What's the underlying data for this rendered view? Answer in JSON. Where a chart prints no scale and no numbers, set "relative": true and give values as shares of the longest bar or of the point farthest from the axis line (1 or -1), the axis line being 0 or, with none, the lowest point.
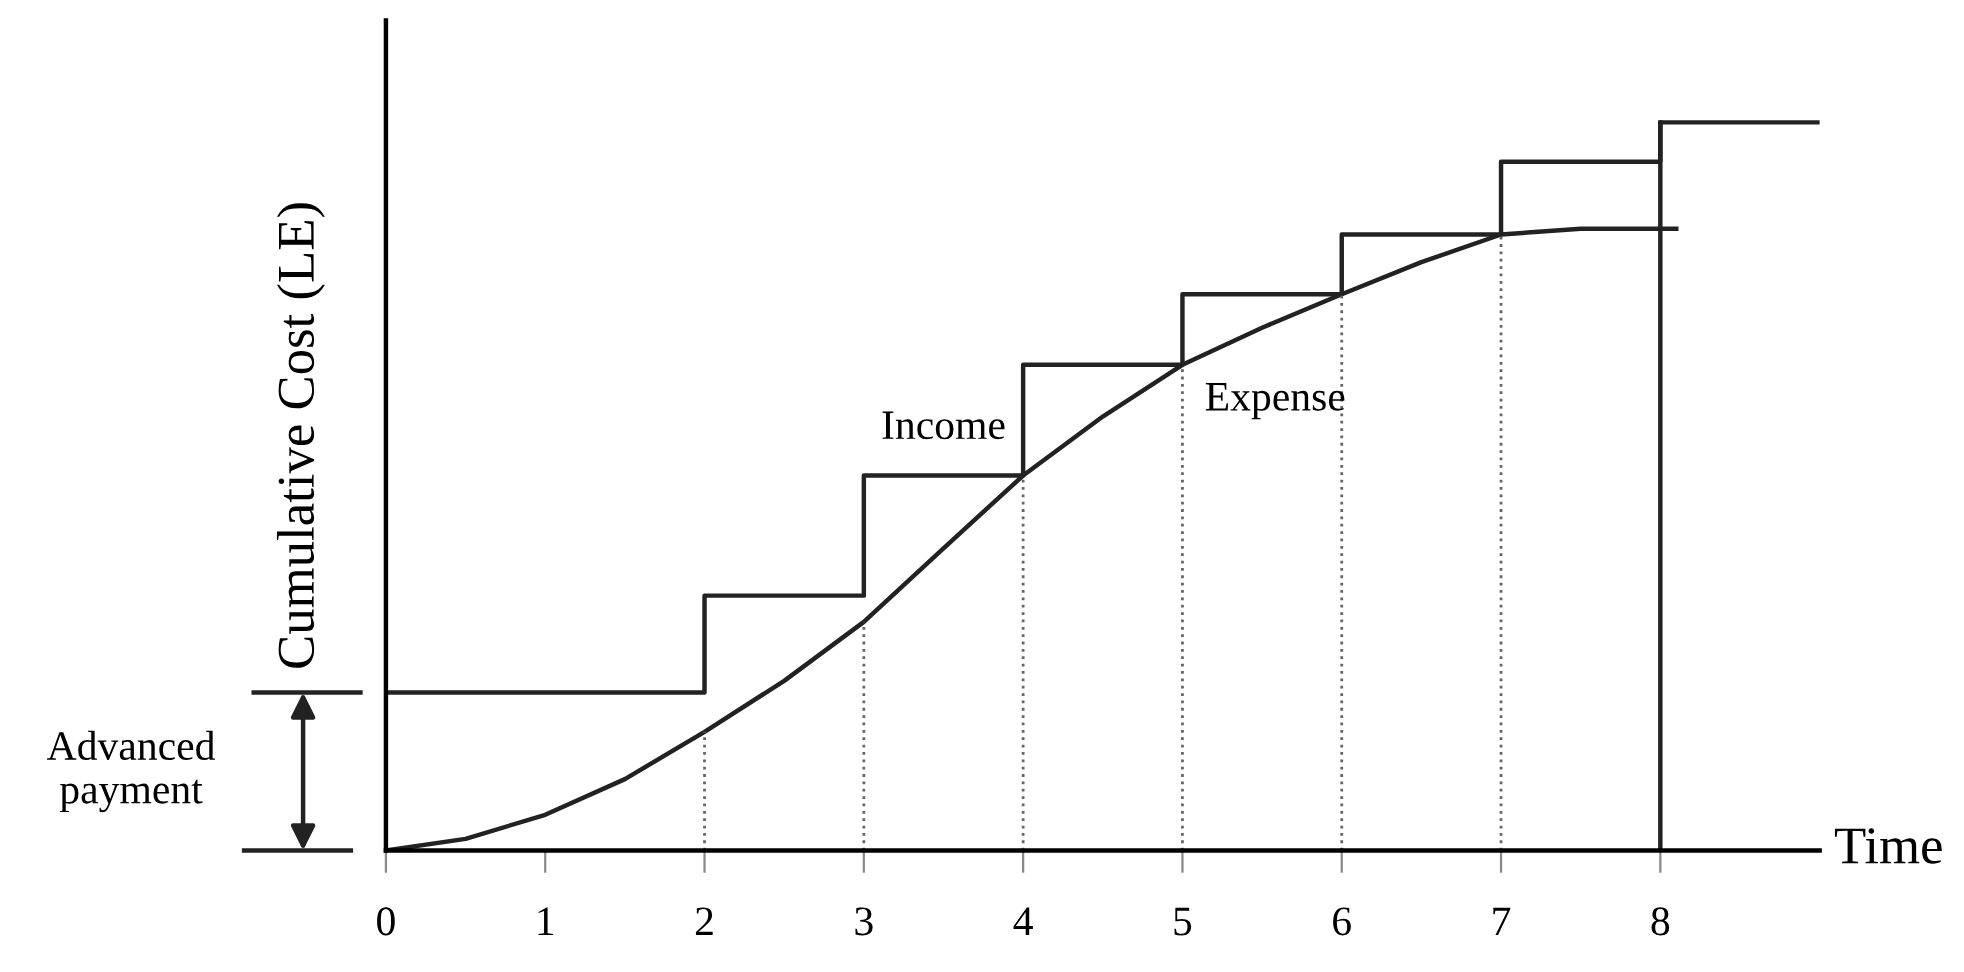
{
  "chart_data": {
    "type": "line",
    "relative": true,
    "ylabel": "Cumulative Cost (LE)",
    "xlabel": "Time",
    "xlim": [
      0,
      9
    ],
    "xticks": [
      0,
      1,
      2,
      3,
      4,
      5,
      6,
      7,
      8
    ],
    "tick_labels": "x",
    "grid": false,
    "legend": false,
    "series": [
      {
        "type": "step",
        "name": "Income",
        "color": "#222222",
        "x": [
          0,
          2,
          3,
          4,
          5,
          6,
          7,
          8,
          9
        ],
        "values": [
          0.217,
          0.35,
          0.515,
          0.667,
          0.764,
          0.846,
          0.946,
          1,
          1
        ]
      },
      {
        "name": "Expense",
        "color": "#222222",
        "x": [
          0,
          0.5,
          1,
          1.5,
          2,
          2.5,
          3,
          3.5,
          4,
          4.5,
          5,
          5.5,
          6,
          6.5,
          7,
          7.5,
          8.1
        ],
        "values": [
          0,
          0.016,
          0.049,
          0.098,
          0.163,
          0.233,
          0.314,
          0.415,
          0.515,
          0.596,
          0.667,
          0.718,
          0.764,
          0.808,
          0.846,
          0.854,
          0.854
        ]
      }
    ],
    "ref_lines": [
      {
        "axis": "x",
        "value": 2,
        "line_style": "dotted",
        "color": "#666666"
      },
      {
        "axis": "x",
        "value": 3,
        "line_style": "dotted",
        "color": "#666666"
      },
      {
        "axis": "x",
        "value": 4,
        "line_style": "dotted",
        "color": "#666666"
      },
      {
        "axis": "x",
        "value": 5,
        "line_style": "dotted",
        "color": "#666666"
      },
      {
        "axis": "x",
        "value": 6,
        "line_style": "dotted",
        "color": "#666666"
      },
      {
        "axis": "x",
        "value": 7,
        "line_style": "dotted",
        "color": "#666666"
      },
      {
        "axis": "x",
        "value": 8,
        "line_style": "solid",
        "color": "#222222"
      }
    ],
    "annotations": [
      "Advanced\npayment"
    ]
  }
}
